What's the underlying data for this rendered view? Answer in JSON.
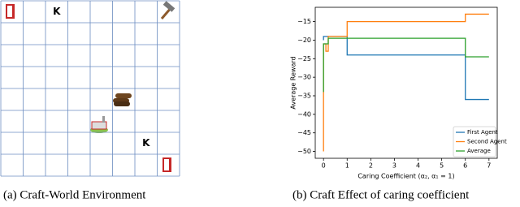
{
  "grid_world": {
    "labels": [
      "K",
      "K"
    ]
  },
  "captions": [
    "(a) Craft-World Environment",
    "(b) Craft Effect of caring coefficient"
  ],
  "chart_data": {
    "type": "line",
    "x_label": "Caring Coefficient (α₂, α₁ = 1)",
    "y_label": "Average Reward",
    "x": [
      0,
      0,
      0.1,
      0.1,
      0.2,
      0.2,
      1,
      1,
      6,
      6,
      7
    ],
    "series": [
      {
        "name": "First Agent",
        "color": "#1f77b4",
        "values": [
          -20,
          -19,
          -19,
          -19,
          -19,
          -19,
          -19,
          -24,
          -24,
          -36,
          -36
        ]
      },
      {
        "name": "Second Agent",
        "color": "#ff7f0e",
        "values": [
          -50,
          -21,
          -21,
          -23,
          -23,
          -19,
          -19,
          -15,
          -15,
          -13,
          -13
        ]
      },
      {
        "name": "Average",
        "color": "#2ca02c",
        "values": [
          -34,
          -21,
          -21,
          -21,
          -21,
          -19.5,
          -19.5,
          -19.5,
          -19.5,
          -24.5,
          -24.5
        ]
      }
    ],
    "xlim": [
      -0.35,
      7.35
    ],
    "xticks": [
      0,
      1,
      2,
      3,
      4,
      5,
      6,
      7
    ],
    "ylim": [
      -51.85,
      -11.15
    ],
    "yticks": [
      {
        "value": -50,
        "label": "−50"
      },
      {
        "value": -45,
        "label": "−45"
      },
      {
        "value": -40,
        "label": "−40"
      },
      {
        "value": -35,
        "label": "−35"
      },
      {
        "value": -30,
        "label": "−30"
      },
      {
        "value": -25,
        "label": "−25"
      },
      {
        "value": -20,
        "label": "−20"
      },
      {
        "value": -15,
        "label": "−15"
      }
    ],
    "grid": false,
    "legend": "lower right"
  }
}
